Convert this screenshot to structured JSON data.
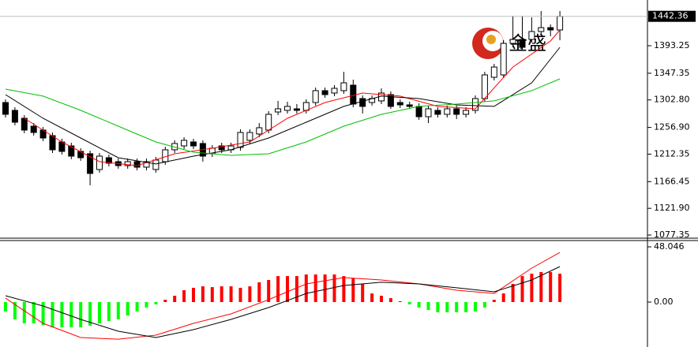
{
  "watermark": "金盛",
  "chart_data": [
    {
      "type": "candlestick",
      "ylim": [
        1072.1,
        1469.6
      ],
      "yticks": [
        1077.35,
        {
          "value": 1121.9,
          "label": "1121.90"
        },
        1166.45,
        1212.35,
        {
          "value": 1256.9,
          "label": "1256.90"
        },
        {
          "value": 1302.8,
          "label": "1302.80"
        },
        1347.35,
        1393.25
      ],
      "current_price": 1442.36,
      "up_color": "#ffffff",
      "down_color": "#000000",
      "open": [
        1298.5,
        1285.4,
        1272.2,
        1259,
        1252.5,
        1243.2,
        1232.7,
        1226.1,
        1216.9,
        1213,
        1186.7,
        1206.4,
        1199.8,
        1193.2,
        1199.8,
        1190.6,
        1186.7,
        1199.8,
        1219.6,
        1226.1,
        1232.7,
        1230.1,
        1213,
        1226.1,
        1219.6,
        1223.5,
        1235.4,
        1245.9,
        1252.5,
        1282.7,
        1285.4,
        1288,
        1285.4,
        1298.5,
        1318.3,
        1314.3,
        1318.3,
        1327.5,
        1305.1,
        1298.5,
        1301.2,
        1311.7,
        1298.5,
        1294.6,
        1292,
        1274.8,
        1285.4,
        1278.8,
        1288,
        1278.8,
        1285.4,
        1305.1,
        1340.6,
        1344.6,
        1397.2,
        1403.8,
        1403.8,
        1417,
        1423.5,
        1419.6
      ],
      "high": [
        1303.8,
        1290.6,
        1277.5,
        1264.3,
        1257.7,
        1248.5,
        1238,
        1231.4,
        1222.2,
        1218.2,
        1214.3,
        1211.7,
        1205.1,
        1205.1,
        1205.1,
        1205.1,
        1207.7,
        1224.8,
        1235.4,
        1240.6,
        1238,
        1235.4,
        1227.5,
        1231.4,
        1231.4,
        1253.8,
        1253.8,
        1264.3,
        1284,
        1301.2,
        1299.8,
        1295.9,
        1303.8,
        1323.5,
        1323.5,
        1327.5,
        1349.8,
        1336.7,
        1310.4,
        1310.4,
        1322.2,
        1317,
        1303.8,
        1299.8,
        1297.2,
        1293.3,
        1290.6,
        1293.3,
        1293.3,
        1290.6,
        1310.4,
        1349.8,
        1363,
        1402.5,
        1443.3,
        1443.3,
        1440.6,
        1451.2,
        1428.8,
        1451.2
      ],
      "low": [
        1273.5,
        1260.4,
        1247.2,
        1243.2,
        1234,
        1214.3,
        1211.7,
        1203.8,
        1201.2,
        1160.3,
        1181.4,
        1191.9,
        1188,
        1188,
        1185.3,
        1185.3,
        1181.4,
        1194.6,
        1214.3,
        1220.9,
        1220.9,
        1199.8,
        1207.7,
        1214.3,
        1214.3,
        1218.2,
        1230.1,
        1240.6,
        1247.2,
        1277.5,
        1280.1,
        1280.1,
        1280.1,
        1293.3,
        1306.4,
        1309.1,
        1313,
        1290.6,
        1280.1,
        1293.3,
        1295.9,
        1288,
        1289.3,
        1289.3,
        1269.6,
        1264.3,
        1273.5,
        1273.5,
        1270.9,
        1273.5,
        1280.1,
        1299.8,
        1335.4,
        1339.3,
        1390.6,
        1385.4,
        1398.5,
        1411.7,
        1409.1,
        1402.5
      ],
      "close": [
        1278.8,
        1265.6,
        1252.5,
        1248.5,
        1239.3,
        1219.6,
        1216.9,
        1209,
        1206.4,
        1180.1,
        1209,
        1197.2,
        1193.2,
        1199.8,
        1190.6,
        1199.8,
        1202.5,
        1219.6,
        1230.1,
        1235.4,
        1226.1,
        1209,
        1222.2,
        1219.6,
        1226.1,
        1248.5,
        1248.5,
        1256.4,
        1278.8,
        1288,
        1292,
        1285.4,
        1298.5,
        1318.3,
        1311.7,
        1322.2,
        1331.4,
        1295.9,
        1292,
        1305.1,
        1314.3,
        1292,
        1294.6,
        1292,
        1274.8,
        1288,
        1278.8,
        1288,
        1278.8,
        1285.4,
        1305.1,
        1344.6,
        1357.7,
        1397.2,
        1403.8,
        1390.6,
        1417,
        1423.5,
        1419.6,
        1442.36
      ],
      "series": [
        {
          "color": "#ff0000",
          "x": [
            2,
            6,
            10,
            14,
            18,
            22,
            26,
            30,
            34,
            38,
            42,
            46,
            50,
            54,
            58,
            59
          ],
          "values": [
            1272.2,
            1232.7,
            1199.8,
            1193.2,
            1213,
            1222.2,
            1232.7,
            1272.2,
            1298.5,
            1314.3,
            1309.1,
            1292,
            1288,
            1357.7,
            1401.2,
            1419.6
          ]
        },
        {
          "color": "#000000",
          "x": [
            0,
            4,
            8,
            12,
            16,
            20,
            24,
            28,
            32,
            36,
            40,
            44,
            48,
            52,
            56,
            59
          ],
          "values": [
            1311.7,
            1272.2,
            1239.3,
            1206.4,
            1195.9,
            1209,
            1219.6,
            1239.3,
            1265.6,
            1292,
            1309.1,
            1305.1,
            1294.6,
            1292,
            1331.4,
            1390.6
          ]
        },
        {
          "color": "#00c000",
          "x": [
            0,
            4,
            8,
            12,
            16,
            20,
            24,
            28,
            32,
            36,
            40,
            44,
            48,
            52,
            56,
            59
          ],
          "values": [
            1320.9,
            1309.1,
            1285.4,
            1259,
            1232.7,
            1215.6,
            1210.3,
            1213,
            1232.7,
            1259,
            1278.8,
            1292,
            1295.9,
            1301.2,
            1318.3,
            1338
          ]
        }
      ]
    },
    {
      "type": "macd",
      "ylim": [
        -39.1,
        54.9
      ],
      "yticks": [
        48.046,
        {
          "value": 0,
          "label": "0.00"
        }
      ],
      "up_color": "#ff0000",
      "down_color": "#00ff00",
      "values": [
        -8.2,
        -15,
        -18.5,
        -18.5,
        -20,
        -22,
        -22,
        -22,
        -22,
        -20.6,
        -18.5,
        -16.5,
        -15,
        -11.7,
        -8.2,
        -4.8,
        -2,
        2,
        5.5,
        10.3,
        12.4,
        13.7,
        13,
        13.7,
        13.7,
        12.4,
        13.7,
        17.2,
        19.2,
        22.6,
        22.6,
        22.6,
        24,
        24,
        24,
        24,
        22.6,
        20.6,
        15.8,
        7.5,
        5.5,
        3.4,
        0.7,
        -2,
        -4.8,
        -6.9,
        -8.9,
        -8.9,
        -8.9,
        -8.9,
        -8.2,
        -4.8,
        2,
        7.5,
        15.8,
        22.6,
        24.7,
        26.1,
        26.1,
        24.7
      ],
      "series": [
        {
          "color": "#ff0000",
          "x": [
            0,
            4,
            8,
            12,
            16,
            20,
            24,
            28,
            32,
            36,
            40,
            44,
            48,
            52,
            56,
            59
          ],
          "values": [
            3.4,
            -18.5,
            -30.9,
            -32.3,
            -28.8,
            -18.5,
            -10.3,
            2.1,
            15.8,
            21.3,
            19.2,
            15.8,
            10.3,
            7.5,
            29.5,
            43.2
          ]
        },
        {
          "color": "#000000",
          "x": [
            0,
            4,
            8,
            12,
            16,
            20,
            24,
            28,
            32,
            36,
            40,
            44,
            48,
            52,
            56,
            59
          ],
          "values": [
            5.5,
            -3.4,
            -15.1,
            -25.4,
            -30.9,
            -24,
            -15.1,
            -4.8,
            7.5,
            14.4,
            17.2,
            15.8,
            12.4,
            8.9,
            19.2,
            30.9
          ]
        }
      ]
    }
  ]
}
